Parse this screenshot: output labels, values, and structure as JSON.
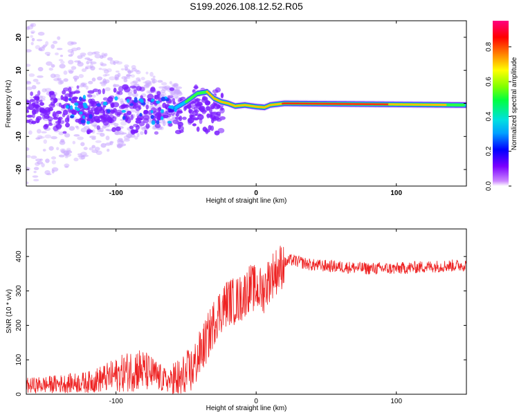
{
  "title": "S199.2026.108.12.52.R05",
  "chart_data": [
    {
      "type": "heatmap",
      "xlabel": "Height of straight line (km)",
      "ylabel": "Frequency (Hz)",
      "xlim": [
        -164,
        150
      ],
      "ylim": [
        -25,
        25
      ],
      "xticks": [
        -100,
        0,
        100
      ],
      "yticks": [
        -20,
        -10,
        0,
        10,
        20
      ],
      "colorbar": {
        "label": "Normalized spectral amplitude",
        "range": [
          0,
          0.95
        ],
        "ticks": [
          "0.0",
          "0.2",
          "0.4",
          "0.6",
          "0.8"
        ]
      },
      "ridge": [
        {
          "x": -60,
          "freq": -2
        },
        {
          "x": -50,
          "freq": 0.5
        },
        {
          "x": -42,
          "freq": 3
        },
        {
          "x": -35,
          "freq": 3.5
        },
        {
          "x": -30,
          "freq": 1.5
        },
        {
          "x": -25,
          "freq": 0.5
        },
        {
          "x": -20,
          "freq": 0
        },
        {
          "x": -15,
          "freq": -0.8
        },
        {
          "x": -8,
          "freq": -0.5
        },
        {
          "x": 0,
          "freq": -1
        },
        {
          "x": 6,
          "freq": -1.2
        },
        {
          "x": 10,
          "freq": -0.5
        },
        {
          "x": 20,
          "freq": 0
        },
        {
          "x": 150,
          "freq": -0.5
        }
      ]
    },
    {
      "type": "line",
      "xlabel": "Height of straight line (km)",
      "ylabel": "SNR (10 * v/v)",
      "xlim": [
        -164,
        150
      ],
      "ylim": [
        0,
        480
      ],
      "xticks": [
        -100,
        0,
        100
      ],
      "yticks": [
        0,
        100,
        200,
        300,
        400
      ],
      "series": [
        {
          "name": "SNR",
          "color": "#ee2222",
          "x": [
            -164,
            -140,
            -120,
            -100,
            -85,
            -75,
            -65,
            -55,
            -45,
            -35,
            -28,
            -20,
            -15,
            -10,
            -5,
            0,
            5,
            10,
            15,
            20,
            25,
            30,
            40,
            60,
            80,
            100,
            120,
            150
          ],
          "values": [
            25,
            30,
            35,
            55,
            75,
            60,
            40,
            35,
            75,
            160,
            230,
            270,
            270,
            280,
            310,
            305,
            300,
            340,
            360,
            380,
            390,
            385,
            375,
            370,
            365,
            365,
            370,
            375
          ]
        }
      ]
    }
  ]
}
